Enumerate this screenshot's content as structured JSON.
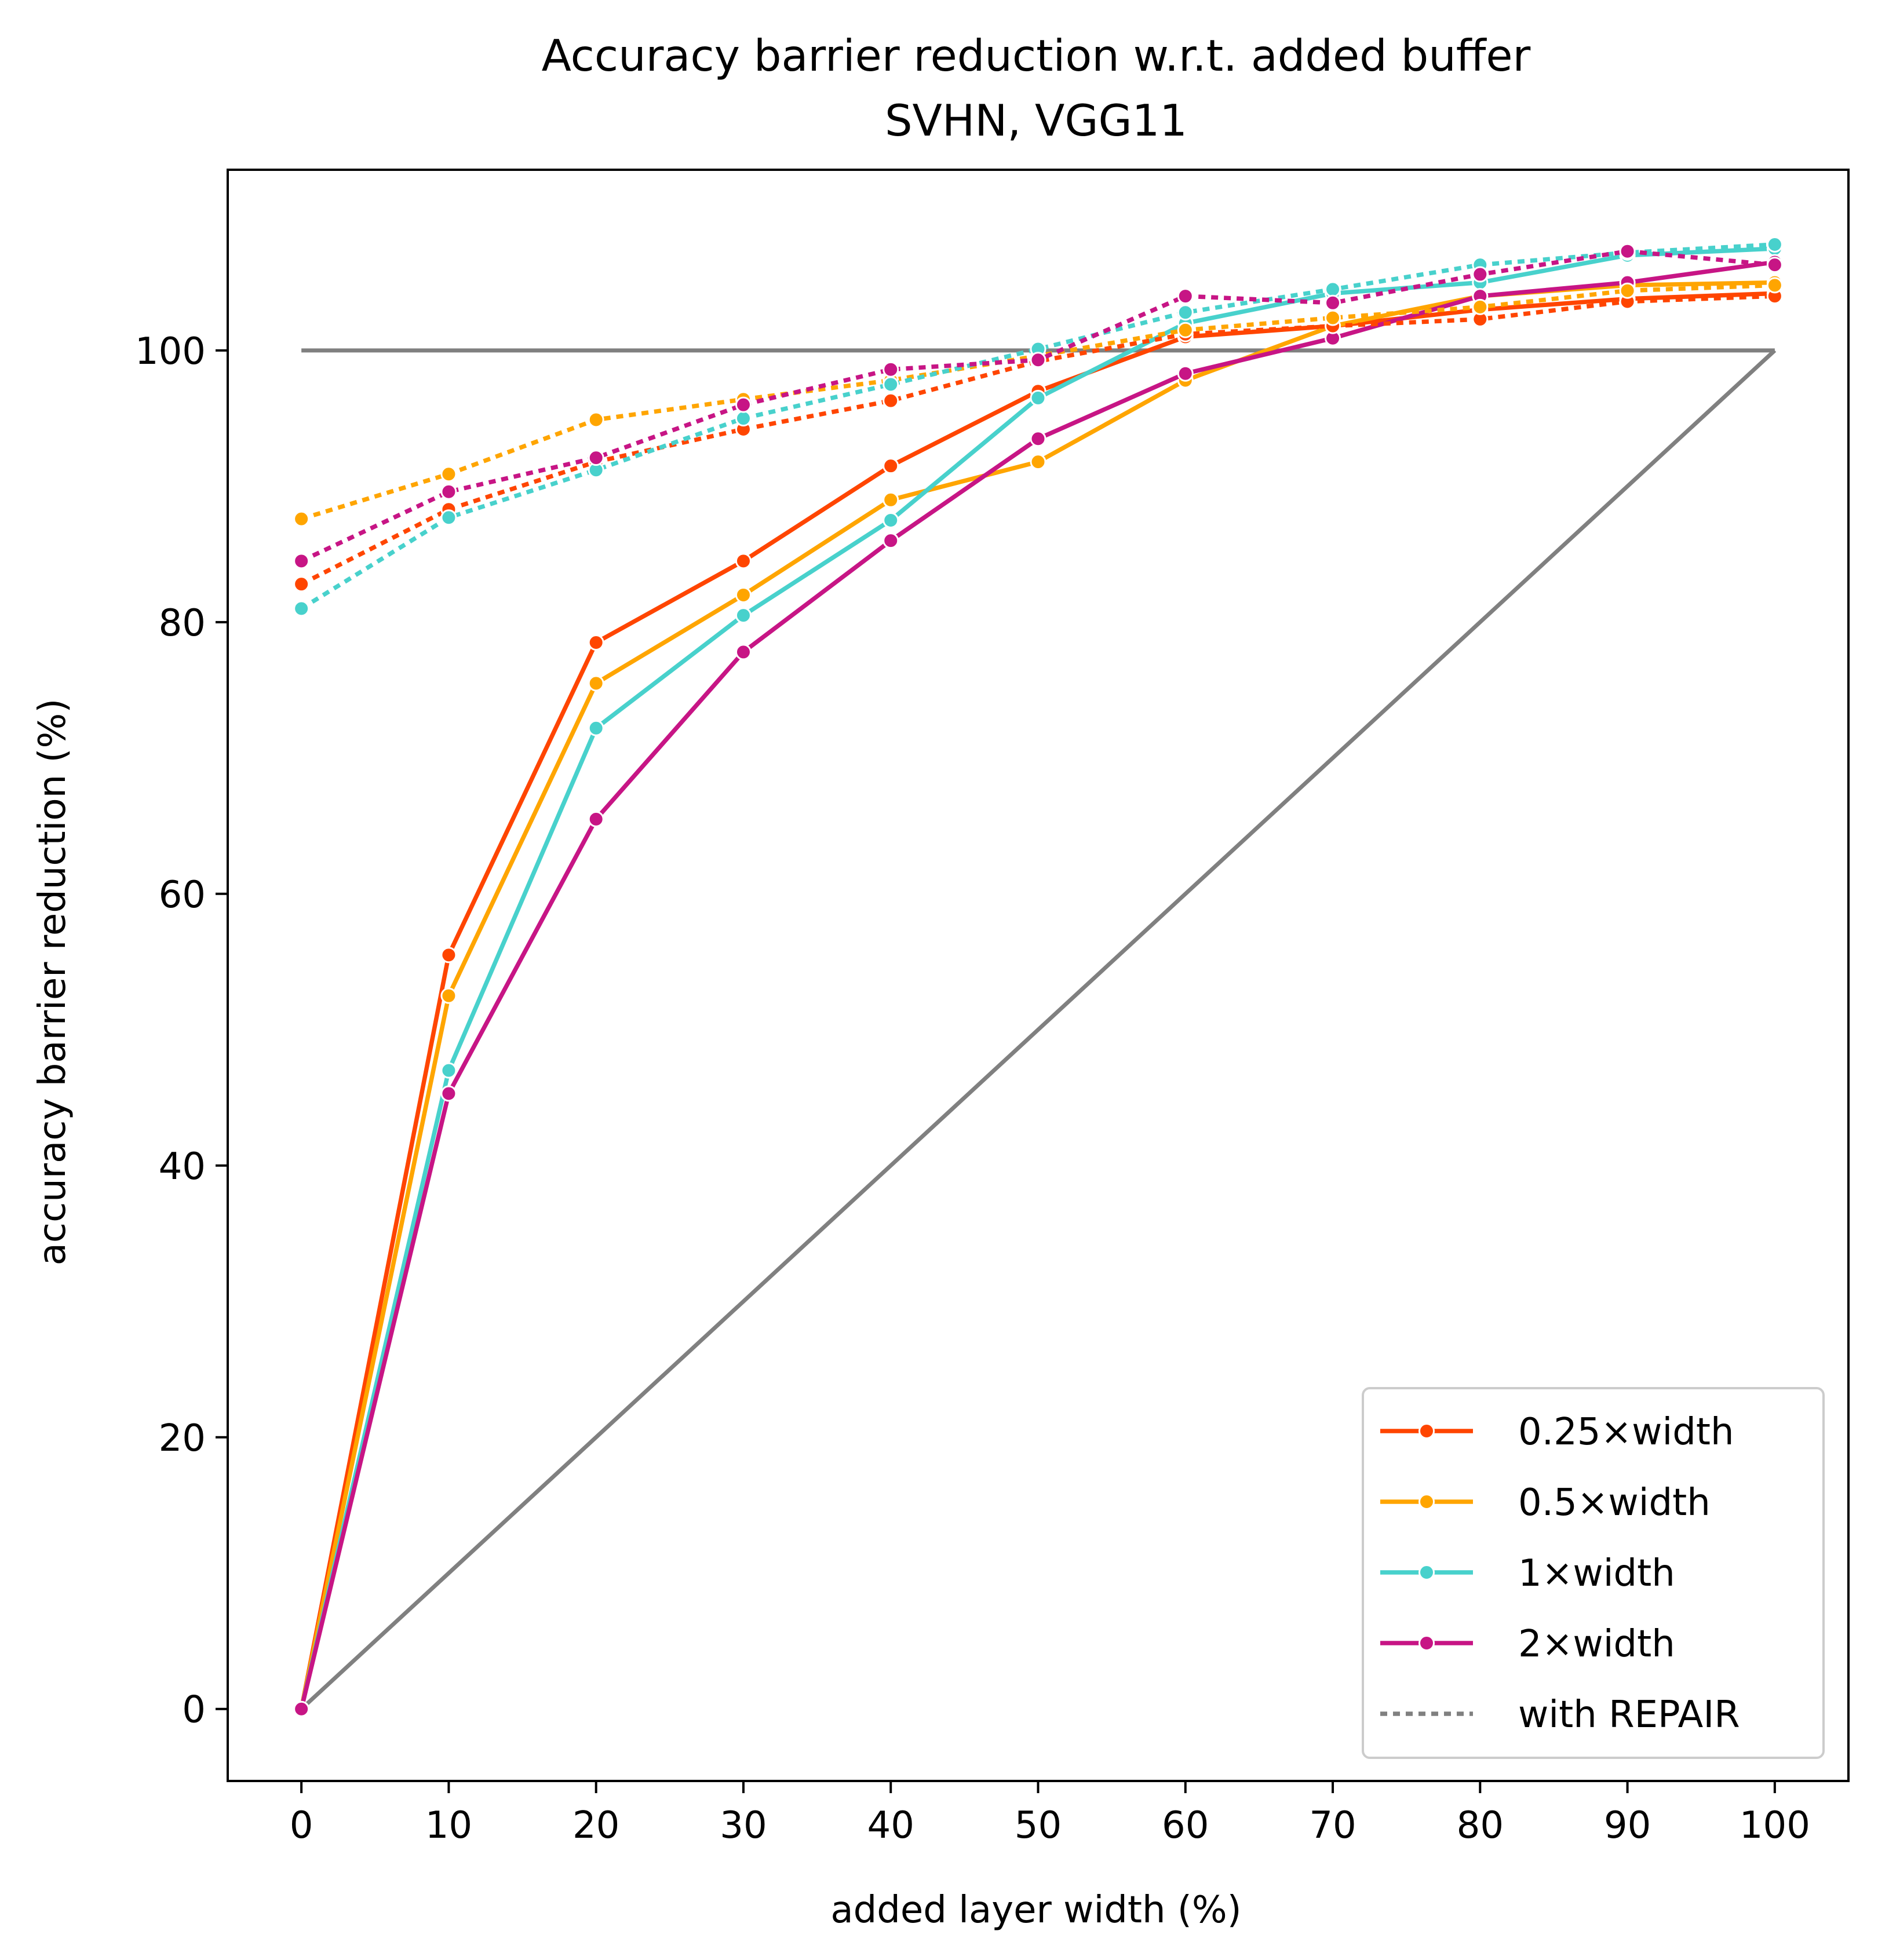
{
  "chart_data": {
    "type": "line",
    "title": "Accuracy barrier reduction w.r.t. added buffer",
    "subtitle": "SVHN, VGG11",
    "xlabel": "added layer width (%)",
    "ylabel": "accuracy barrier reduction (%)",
    "xlim": [
      -5,
      105
    ],
    "ylim": [
      -5.3,
      113.3
    ],
    "x_ticks": [
      0,
      10,
      20,
      30,
      40,
      50,
      60,
      70,
      80,
      90,
      100
    ],
    "y_ticks": [
      0,
      20,
      40,
      60,
      80,
      100
    ],
    "grid": false,
    "legend_position": "lower-right",
    "x": [
      0,
      10,
      20,
      30,
      40,
      50,
      60,
      70,
      80,
      90,
      100
    ],
    "series": [
      {
        "name": "0.25×width",
        "color": "#ff4500",
        "style": "solid",
        "values": [
          0,
          55.5,
          78.5,
          84.5,
          91.5,
          97,
          101,
          101.8,
          103,
          103.8,
          104.2
        ]
      },
      {
        "name": "0.5×width",
        "color": "#ffa500",
        "style": "solid",
        "values": [
          0,
          52.5,
          75.5,
          82,
          89,
          91.8,
          97.8,
          101.8,
          104,
          104.8,
          105
        ]
      },
      {
        "name": "1×width",
        "color": "#48d1cc",
        "style": "solid",
        "values": [
          0,
          47,
          72.2,
          80.5,
          87.5,
          96.5,
          102,
          104.2,
          105,
          107,
          107.5
        ]
      },
      {
        "name": "2×width",
        "color": "#c71585",
        "style": "solid",
        "values": [
          0,
          45.3,
          65.5,
          77.8,
          86,
          93.5,
          98.3,
          100.9,
          104,
          105,
          106.5
        ]
      },
      {
        "name": "0.25×width",
        "color": "#ff4500",
        "style": "dotted",
        "repair": true,
        "values": [
          82.8,
          88.3,
          91.8,
          94.2,
          96.3,
          99.2,
          101.2,
          101.8,
          102.3,
          103.6,
          104
        ]
      },
      {
        "name": "0.5×width",
        "color": "#ffa500",
        "style": "dotted",
        "repair": true,
        "values": [
          87.6,
          90.9,
          94.9,
          96.4,
          97.8,
          99.6,
          101.5,
          102.4,
          103.2,
          104.4,
          104.8
        ]
      },
      {
        "name": "1×width",
        "color": "#48d1cc",
        "style": "dotted",
        "repair": true,
        "values": [
          81,
          87.7,
          91.2,
          95,
          97.5,
          100.1,
          102.8,
          104.5,
          106.3,
          107.2,
          107.8
        ]
      },
      {
        "name": "2×width",
        "color": "#c71585",
        "style": "dotted",
        "repair": true,
        "values": [
          84.5,
          89.6,
          92.1,
          96,
          98.6,
          99.3,
          104,
          103.5,
          105.6,
          107.3,
          106.3
        ]
      }
    ],
    "reference_lines": [
      {
        "color": "#808080",
        "x": [
          0,
          100
        ],
        "values": [
          100,
          100
        ]
      },
      {
        "color": "#808080",
        "x": [
          0,
          100
        ],
        "values": [
          0,
          100
        ]
      }
    ],
    "legend": [
      {
        "label": "0.25×width",
        "color": "#ff4500",
        "style": "solid",
        "marker": true
      },
      {
        "label": "0.5×width",
        "color": "#ffa500",
        "style": "solid",
        "marker": true
      },
      {
        "label": "1×width",
        "color": "#48d1cc",
        "style": "solid",
        "marker": true
      },
      {
        "label": "2×width",
        "color": "#c71585",
        "style": "solid",
        "marker": true
      },
      {
        "label": "with REPAIR",
        "color": "#808080",
        "style": "dotted",
        "marker": false
      }
    ]
  }
}
